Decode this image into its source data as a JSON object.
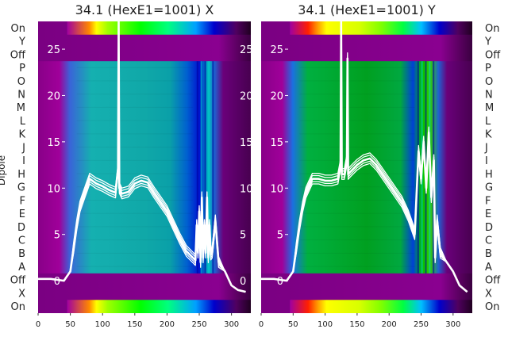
{
  "chart_data": [
    {
      "type": "heatmap",
      "title": "34.1 (HexE1=1001) X",
      "ylabel": "Dipole",
      "x_ticks": [
        0,
        50,
        100,
        150,
        200,
        250,
        300
      ],
      "xlim": [
        0,
        330
      ],
      "row_labels": [
        "On",
        "Y",
        "Off",
        "P",
        "O",
        "N",
        "M",
        "L",
        "K",
        "J",
        "I",
        "H",
        "G",
        "F",
        "E",
        "D",
        "C",
        "B",
        "A",
        "Off",
        "X",
        "On"
      ],
      "overlay_ticks": [
        0,
        5,
        10,
        15,
        20,
        25
      ],
      "overlay_ylim": [
        -3.5,
        28
      ],
      "overlay_x": [
        0,
        20,
        40,
        50,
        55,
        60,
        65,
        70,
        80,
        90,
        100,
        110,
        120,
        124,
        125,
        126,
        130,
        140,
        150,
        160,
        170,
        180,
        190,
        200,
        210,
        220,
        230,
        240,
        244,
        246,
        248,
        250,
        252,
        254,
        256,
        258,
        260,
        262,
        264,
        266,
        268,
        270,
        275,
        280,
        290,
        300,
        310,
        322
      ],
      "overlay_y": [
        0.2,
        0.2,
        0.0,
        1.0,
        3.5,
        6.0,
        8.0,
        9.0,
        11.0,
        10.5,
        10.2,
        9.8,
        9.5,
        12.0,
        28.0,
        10.0,
        9.4,
        9.6,
        10.5,
        10.8,
        10.6,
        9.5,
        8.5,
        7.5,
        6.0,
        4.5,
        3.2,
        2.5,
        2.2,
        6.0,
        3.0,
        7.5,
        2.0,
        9.0,
        2.5,
        6.0,
        3.0,
        9.0,
        2.5,
        6.0,
        2.8,
        3.0,
        6.5,
        2.0,
        1.0,
        -0.5,
        -1.0,
        -1.2
      ]
    },
    {
      "type": "heatmap",
      "title": "34.1 (HexE1=1001) Y",
      "x_ticks": [
        0,
        50,
        100,
        150,
        200,
        250,
        300
      ],
      "xlim": [
        0,
        330
      ],
      "row_labels": [
        "On",
        "Y",
        "Off",
        "P",
        "O",
        "N",
        "M",
        "L",
        "K",
        "J",
        "I",
        "H",
        "G",
        "F",
        "E",
        "D",
        "C",
        "B",
        "A",
        "Off",
        "X",
        "On"
      ],
      "overlay_ticks": [
        0,
        5,
        10,
        15,
        20,
        25
      ],
      "overlay_ylim": [
        -3.5,
        28
      ],
      "overlay_x": [
        0,
        20,
        40,
        50,
        55,
        60,
        65,
        70,
        80,
        90,
        100,
        110,
        120,
        124,
        125,
        126,
        130,
        134,
        135,
        136,
        140,
        150,
        160,
        170,
        180,
        190,
        200,
        210,
        220,
        230,
        240,
        246,
        250,
        254,
        258,
        262,
        266,
        270,
        272,
        275,
        280,
        290,
        300,
        310,
        322
      ],
      "overlay_y": [
        0.2,
        0.2,
        0.0,
        1.0,
        3.5,
        6.0,
        8.0,
        9.5,
        11.0,
        11.0,
        10.8,
        10.8,
        11.0,
        12.5,
        28.0,
        11.5,
        11.5,
        13.0,
        24.0,
        11.5,
        11.8,
        12.5,
        13.0,
        13.2,
        12.5,
        11.5,
        10.5,
        9.5,
        8.5,
        7.0,
        5.0,
        14.0,
        11.0,
        15.0,
        10.0,
        16.0,
        9.0,
        13.0,
        2.5,
        6.5,
        3.0,
        2.0,
        1.0,
        -0.5,
        -1.2
      ]
    }
  ]
}
